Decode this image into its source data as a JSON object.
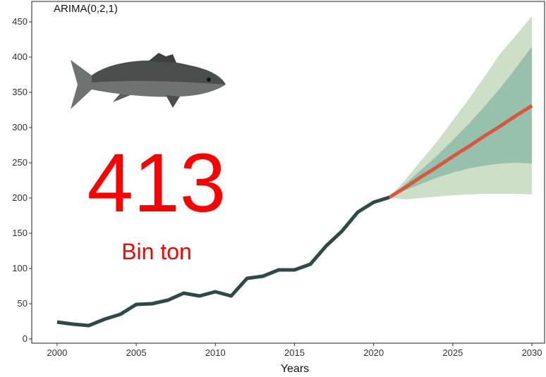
{
  "chart_data": {
    "type": "line",
    "title": "ARIMA(0,2,1)",
    "x_label": "Years",
    "annotations": {
      "big": "413",
      "unit": "Bin ton"
    },
    "xlim": [
      1998.4,
      2030.8
    ],
    "ylim": [
      -6,
      479
    ],
    "xticks": [
      2000,
      2005,
      2010,
      2015,
      2020,
      2025,
      2030
    ],
    "yticks": [
      0,
      50,
      100,
      150,
      200,
      250,
      300,
      350,
      400,
      450
    ],
    "history": {
      "color": "#2d4a47",
      "x": [
        2000,
        2001,
        2002,
        2003,
        2004,
        2005,
        2006,
        2007,
        2008,
        2009,
        2010,
        2011,
        2012,
        2013,
        2014,
        2015,
        2016,
        2017,
        2018,
        2019,
        2020,
        2021
      ],
      "values": [
        24,
        21,
        19,
        28,
        35,
        49,
        50,
        55,
        65,
        61,
        67,
        61,
        86,
        89,
        98,
        98,
        106,
        132,
        153,
        180,
        194,
        201
      ]
    },
    "forecast": {
      "x": [
        2021,
        2022,
        2023,
        2024,
        2025,
        2026,
        2027,
        2028,
        2029,
        2030
      ],
      "mean": {
        "color": "#d9563f",
        "values": [
          201,
          215,
          230,
          244,
          259,
          273,
          288,
          302,
          317,
          331
        ]
      },
      "band80": {
        "color": "#96c2ad",
        "lower": [
          201,
          211,
          220,
          229,
          236,
          242,
          246,
          249,
          250,
          249
        ],
        "upper": [
          201,
          220,
          240,
          260,
          282,
          305,
          330,
          356,
          385,
          415
        ]
      },
      "band95": {
        "color": "#cddfc6",
        "lower": [
          201,
          198,
          200,
          202,
          204,
          205,
          206,
          206,
          206,
          205
        ],
        "upper": [
          201,
          226,
          253,
          280,
          310,
          340,
          372,
          405,
          431,
          458
        ]
      }
    }
  }
}
